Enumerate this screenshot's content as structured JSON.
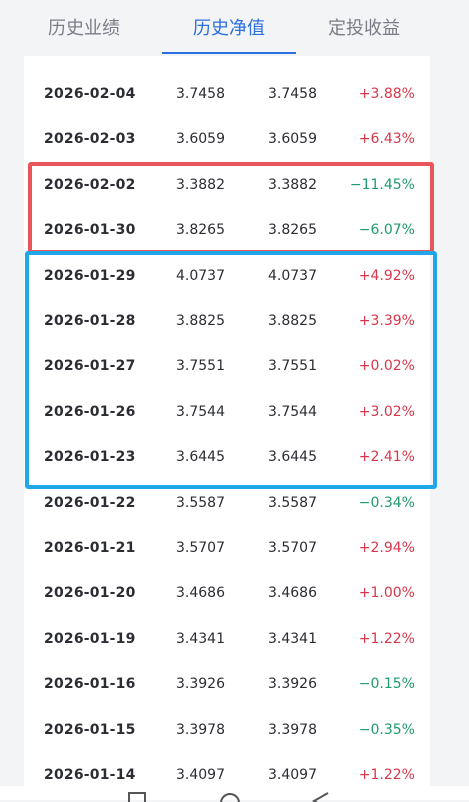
{
  "tabs": [
    {
      "label": "历史业绩",
      "active": false
    },
    {
      "label": "历史净值",
      "active": true
    },
    {
      "label": "定投收益",
      "active": false
    }
  ],
  "rows": [
    {
      "date": "2026-02-04",
      "nav": "3.7458",
      "acc": "3.7458",
      "change": "+3.88%",
      "trend": "up"
    },
    {
      "date": "2026-02-03",
      "nav": "3.6059",
      "acc": "3.6059",
      "change": "+6.43%",
      "trend": "up"
    },
    {
      "date": "2026-02-02",
      "nav": "3.3882",
      "acc": "3.3882",
      "change": "−11.45%",
      "trend": "down"
    },
    {
      "date": "2026-01-30",
      "nav": "3.8265",
      "acc": "3.8265",
      "change": "−6.07%",
      "trend": "down"
    },
    {
      "date": "2026-01-29",
      "nav": "4.0737",
      "acc": "4.0737",
      "change": "+4.92%",
      "trend": "up"
    },
    {
      "date": "2026-01-28",
      "nav": "3.8825",
      "acc": "3.8825",
      "change": "+3.39%",
      "trend": "up"
    },
    {
      "date": "2026-01-27",
      "nav": "3.7551",
      "acc": "3.7551",
      "change": "+0.02%",
      "trend": "up"
    },
    {
      "date": "2026-01-26",
      "nav": "3.7544",
      "acc": "3.7544",
      "change": "+3.02%",
      "trend": "up"
    },
    {
      "date": "2026-01-23",
      "nav": "3.6445",
      "acc": "3.6445",
      "change": "+2.41%",
      "trend": "up"
    },
    {
      "date": "2026-01-22",
      "nav": "3.5587",
      "acc": "3.5587",
      "change": "−0.34%",
      "trend": "down"
    },
    {
      "date": "2026-01-21",
      "nav": "3.5707",
      "acc": "3.5707",
      "change": "+2.94%",
      "trend": "up"
    },
    {
      "date": "2026-01-20",
      "nav": "3.4686",
      "acc": "3.4686",
      "change": "+1.00%",
      "trend": "up"
    },
    {
      "date": "2026-01-19",
      "nav": "3.4341",
      "acc": "3.4341",
      "change": "+1.22%",
      "trend": "up"
    },
    {
      "date": "2026-01-16",
      "nav": "3.3926",
      "acc": "3.3926",
      "change": "−0.15%",
      "trend": "down"
    },
    {
      "date": "2026-01-15",
      "nav": "3.3978",
      "acc": "3.3978",
      "change": "−0.35%",
      "trend": "down"
    },
    {
      "date": "2026-01-14",
      "nav": "3.4097",
      "acc": "3.4097",
      "change": "+1.22%",
      "trend": "up"
    }
  ],
  "colors": {
    "accent": "#2b6fe0",
    "up": "#d7374a",
    "down": "#1f9a6b",
    "highlight_red": "#e8555a",
    "highlight_blue": "#1fa7e8"
  },
  "nav_bar_icons": [
    "menu-icon",
    "home-icon",
    "back-icon"
  ]
}
